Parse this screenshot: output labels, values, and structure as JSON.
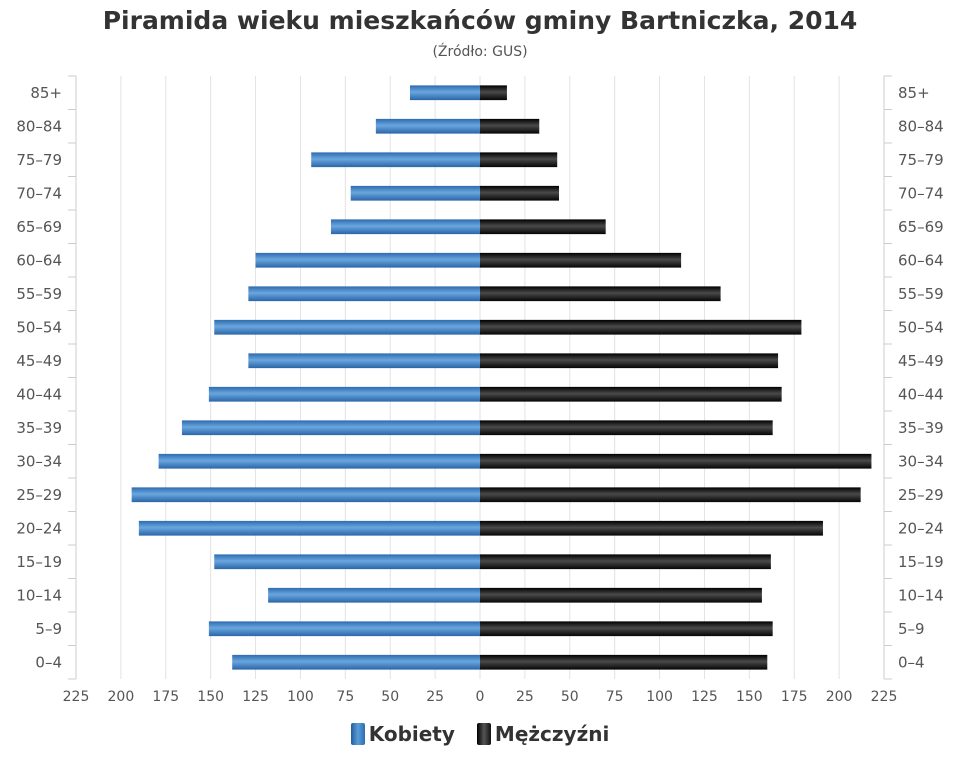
{
  "chart_data": {
    "type": "bar",
    "orientation": "horizontal-pyramid",
    "title": "Piramida wieku mieszkańców gminy Bartniczka, 2014",
    "subtitle": "(Źródło: GUS)",
    "categories": [
      "0–4",
      "5–9",
      "10–14",
      "15–19",
      "20–24",
      "25–29",
      "30–34",
      "35–39",
      "40–44",
      "45–49",
      "50–54",
      "55–59",
      "60–64",
      "65–69",
      "70–74",
      "75–79",
      "80–84",
      "85+"
    ],
    "series": [
      {
        "name": "Kobiety",
        "side": "left",
        "color": "#3c7ec2",
        "values": [
          138,
          151,
          118,
          148,
          190,
          194,
          179,
          166,
          151,
          129,
          148,
          129,
          125,
          83,
          72,
          94,
          58,
          39
        ]
      },
      {
        "name": "Mężczyźni",
        "side": "right",
        "color": "#111111",
        "values": [
          160,
          163,
          157,
          162,
          191,
          212,
          218,
          163,
          168,
          166,
          179,
          134,
          112,
          70,
          44,
          43,
          33,
          15
        ]
      }
    ],
    "xticks": [
      225,
      200,
      175,
      150,
      125,
      100,
      75,
      50,
      25,
      0,
      25,
      50,
      75,
      100,
      125,
      150,
      175,
      200,
      225
    ],
    "xlim": [
      -225,
      225
    ],
    "grid": true,
    "legend": "bottom-center"
  }
}
